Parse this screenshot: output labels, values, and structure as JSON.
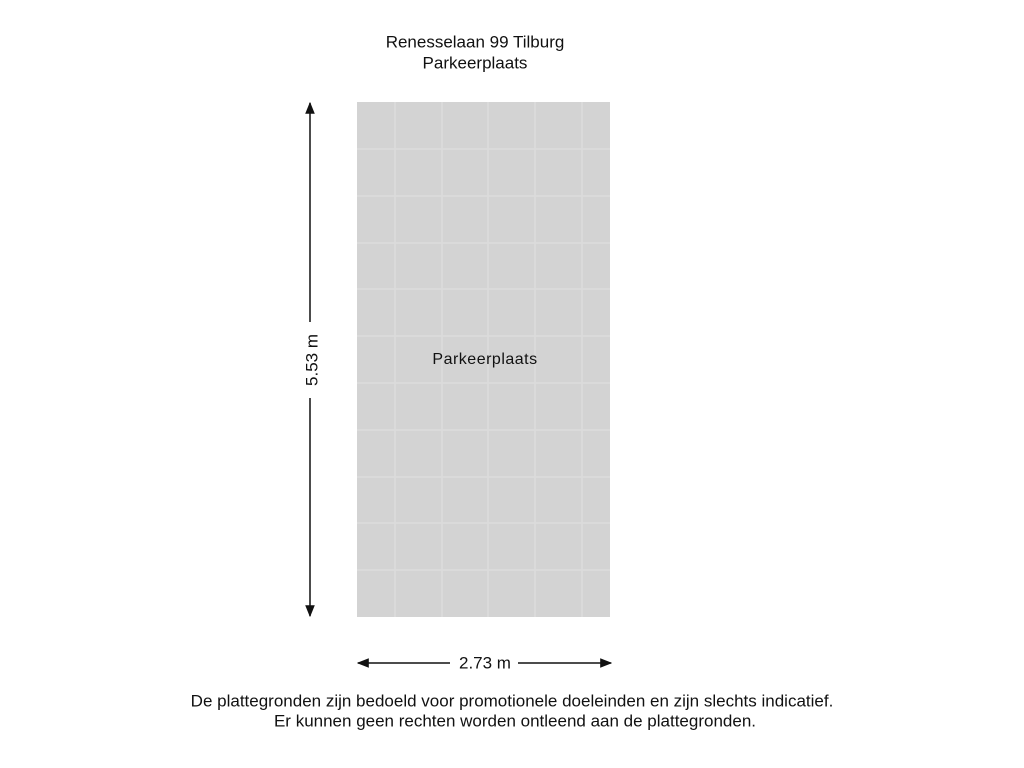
{
  "header": {
    "title": "Renesselaan 99 Tilburg",
    "subtitle": "Parkeerplaats"
  },
  "room": {
    "label": "Parkeerplaats"
  },
  "dimensions": {
    "height": "5.53 m",
    "width": "2.73 m"
  },
  "footer": {
    "line1": "De plattegronden zijn bedoeld voor promotionele doeleinden en zijn slechts indicatief.",
    "line2": "Er kunnen geen rechten worden ontleend aan de plattegronden."
  }
}
